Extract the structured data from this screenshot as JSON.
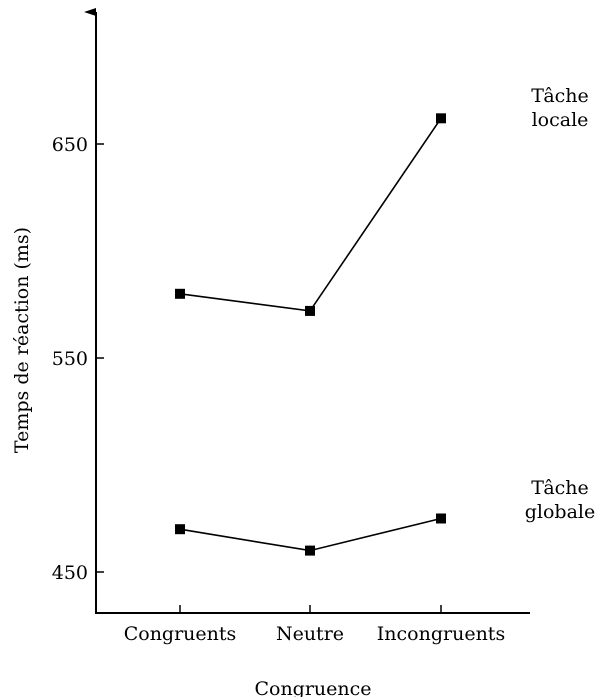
{
  "chart_data": {
    "type": "line",
    "xlabel": "Congruence",
    "ylabel": "Temps de réaction (ms)",
    "categories": [
      "Congruents",
      "Neutre",
      "Incongruents"
    ],
    "yticks": [
      450,
      550,
      650
    ],
    "ylim": [
      430,
      706
    ],
    "grid": false,
    "series": [
      {
        "name_lines": [
          "Tâche",
          "locale"
        ],
        "values": [
          580,
          572,
          662
        ]
      },
      {
        "name_lines": [
          "Tâche",
          "globale"
        ],
        "values": [
          470,
          460,
          475
        ]
      }
    ]
  }
}
